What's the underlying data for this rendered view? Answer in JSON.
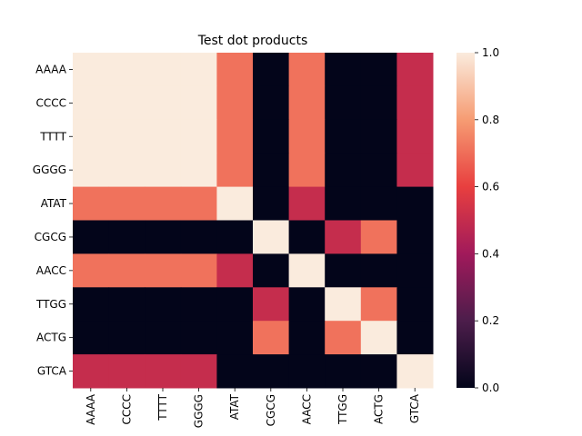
{
  "chart_data": {
    "type": "heatmap",
    "title": "Test dot products",
    "xlabel": "",
    "ylabel": "",
    "rows": [
      "AAAA",
      "CCCC",
      "TTTT",
      "GGGG",
      "ATAT",
      "CGCG",
      "AACC",
      "TTGG",
      "ACTG",
      "GTCA"
    ],
    "columns": [
      "AAAA",
      "CCCC",
      "TTTT",
      "GGGG",
      "ATAT",
      "CGCG",
      "AACC",
      "TTGG",
      "ACTG",
      "GTCA"
    ],
    "values": [
      [
        1.0,
        1.0,
        1.0,
        1.0,
        0.71,
        0.0,
        0.71,
        0.0,
        0.0,
        0.5
      ],
      [
        1.0,
        1.0,
        1.0,
        1.0,
        0.71,
        0.0,
        0.71,
        0.0,
        0.0,
        0.5
      ],
      [
        1.0,
        1.0,
        1.0,
        1.0,
        0.71,
        0.0,
        0.71,
        0.0,
        0.0,
        0.5
      ],
      [
        1.0,
        1.0,
        1.0,
        1.0,
        0.71,
        0.0,
        0.71,
        0.0,
        0.0,
        0.5
      ],
      [
        0.71,
        0.71,
        0.71,
        0.71,
        1.0,
        0.0,
        0.5,
        0.0,
        0.0,
        0.0
      ],
      [
        0.0,
        0.0,
        0.0,
        0.0,
        0.0,
        1.0,
        0.0,
        0.5,
        0.71,
        0.0
      ],
      [
        0.71,
        0.71,
        0.71,
        0.71,
        0.5,
        0.0,
        1.0,
        0.0,
        0.0,
        0.0
      ],
      [
        0.0,
        0.0,
        0.0,
        0.0,
        0.0,
        0.5,
        0.0,
        1.0,
        0.71,
        0.0
      ],
      [
        0.0,
        0.0,
        0.0,
        0.0,
        0.0,
        0.71,
        0.0,
        0.71,
        1.0,
        0.0
      ],
      [
        0.5,
        0.5,
        0.5,
        0.5,
        0.0,
        0.0,
        0.0,
        0.0,
        0.0,
        1.0
      ]
    ],
    "colorbar": {
      "range": [
        0.0,
        1.0
      ],
      "ticks": [
        "0.0",
        "0.2",
        "0.4",
        "0.6",
        "0.8",
        "1.0"
      ],
      "colormap": "rocket",
      "color_stops": [
        "#03051a",
        "#4c1d4b",
        "#a11a5b",
        "#e83f3f",
        "#f69c73",
        "#faebdd"
      ]
    },
    "grid": false,
    "legend": "none"
  }
}
